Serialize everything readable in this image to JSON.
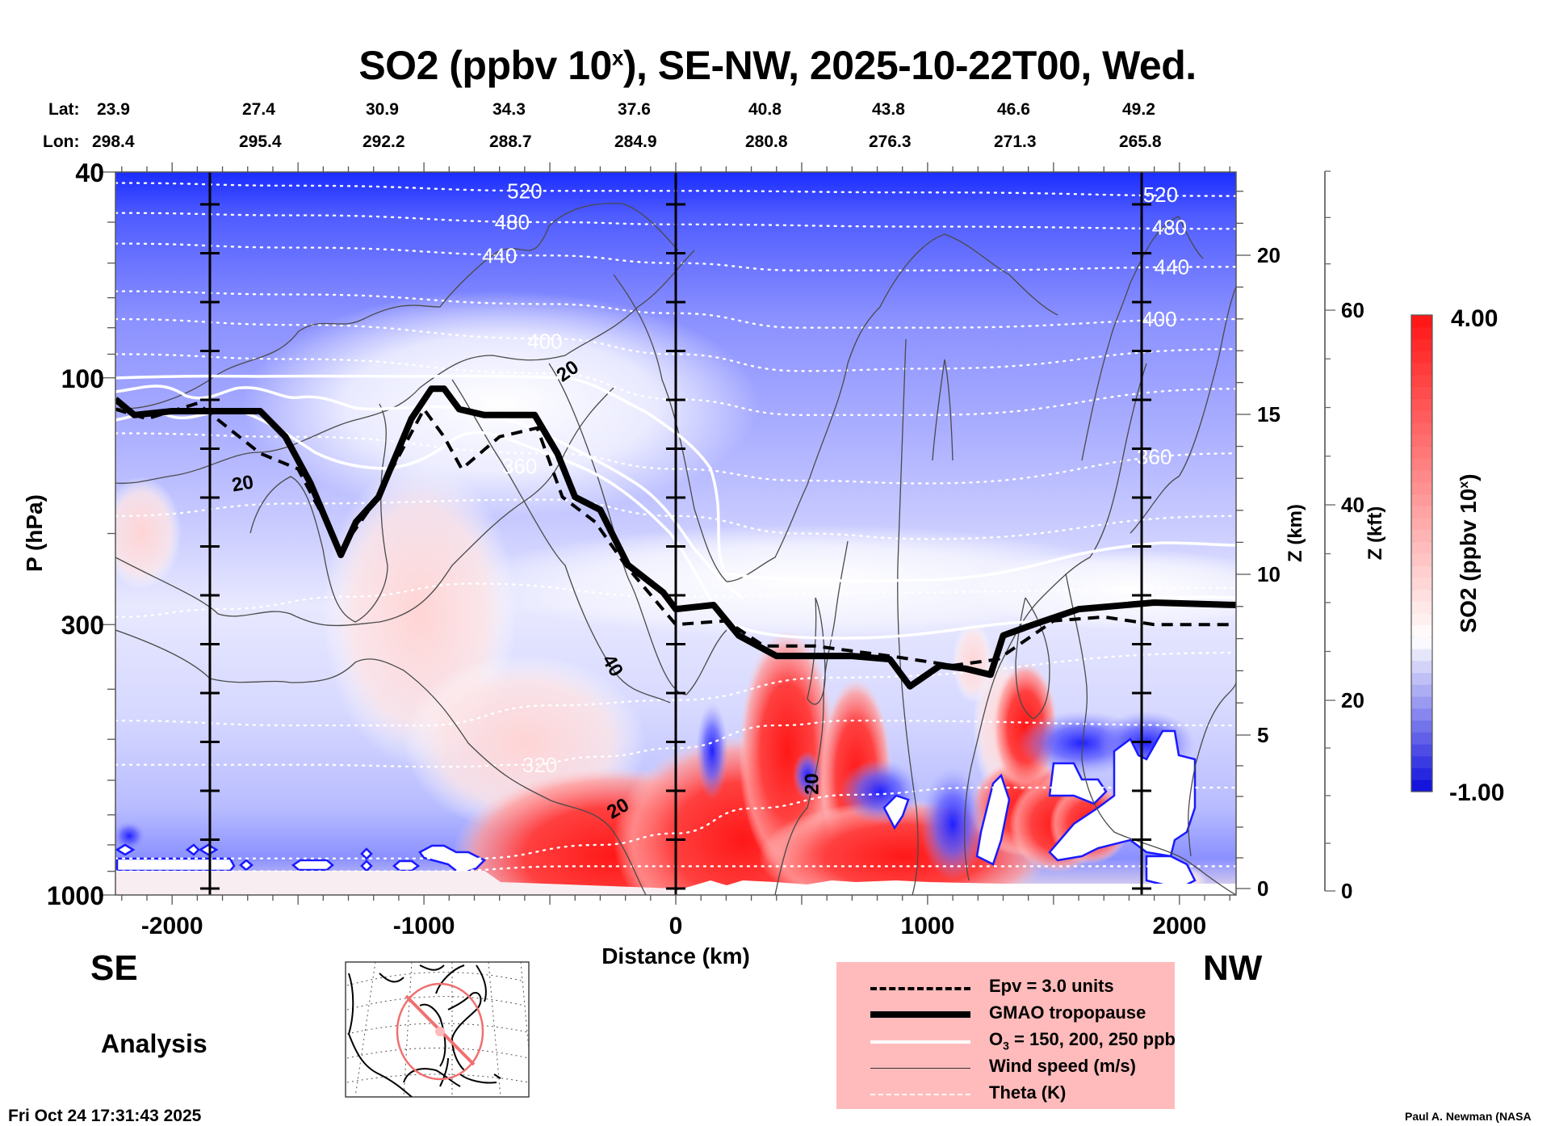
{
  "chart_data": {
    "type": "heatmap",
    "title": "SO2 (ppbv 10",
    "title_sup": "x",
    "title_suffix": "), SE-NW, 2025-10-22T00, Wed.",
    "variable": "SO2",
    "units": "ppbv 10^x",
    "orientation": "SE-NW",
    "valid_time": "2025-10-22T00",
    "weekday": "Wed.",
    "xlabel": "Distance (km)",
    "ylabel": "P (hPa)",
    "x_range": [
      -2225,
      2225
    ],
    "x_ticks": [
      -2000,
      -1000,
      0,
      1000,
      2000
    ],
    "x_tick_labels": [
      "-2000",
      "-1000",
      "0",
      "1000",
      "2000"
    ],
    "y_range_hpa": [
      1000,
      40
    ],
    "y_scale": "log",
    "y_ticks": [
      40,
      100,
      300,
      1000
    ],
    "y_tick_labels": [
      "40",
      "100",
      "300",
      "1000"
    ],
    "z_km_label": "Z (km)",
    "z_km_ticks": [
      0,
      5,
      10,
      15,
      20
    ],
    "z_kft_label": "Z (kft)",
    "z_kft_ticks": [
      0,
      20,
      40,
      60
    ],
    "lat_label": "Lat:",
    "lon_label": "Lon:",
    "lat_values": [
      "23.9",
      "27.4",
      "30.9",
      "34.3",
      "37.6",
      "40.8",
      "43.8",
      "46.6",
      "49.2"
    ],
    "lon_values": [
      "298.4",
      "295.4",
      "292.2",
      "288.7",
      "284.9",
      "280.8",
      "276.3",
      "271.3",
      "265.8"
    ],
    "vertical_markers_km": [
      -1850,
      0,
      1850
    ],
    "colorbar": {
      "label": "SO2 (ppbv 10",
      "label_sup": "x",
      "label_suffix": ")",
      "min": -1.0,
      "max": 4.0,
      "min_label": "-1.00",
      "max_label": "4.00",
      "levels": 40,
      "low_color": "#0000ff",
      "mid_color": "#ffffff",
      "high_color": "#ff0000"
    },
    "theta_contours_K": [
      {
        "value": 520,
        "label": "520",
        "p_hpa": 42
      },
      {
        "value": 480,
        "label": "480",
        "p_hpa": 52
      },
      {
        "value": 440,
        "label": "440",
        "p_hpa": 66
      },
      {
        "value": 400,
        "label": "400",
        "p_hpa": 88
      },
      {
        "value": 360,
        "label": "360",
        "p_hpa": 150
      },
      {
        "value": 320,
        "label": "320",
        "p_hpa": 560
      }
    ],
    "wind_speed_labels_ms": [
      {
        "x_km": -1720,
        "p_hpa": 160,
        "label": "20"
      },
      {
        "x_km": -430,
        "p_hpa": 97,
        "label": "20"
      },
      {
        "x_km": -250,
        "p_hpa": 360,
        "label": "40"
      },
      {
        "x_km": -230,
        "p_hpa": 680,
        "label": "20"
      },
      {
        "x_km": 540,
        "p_hpa": 610,
        "label": "20"
      }
    ],
    "tropopause_gmao_hpa": [
      {
        "x": -2225,
        "p": 110
      },
      {
        "x": -2150,
        "p": 118
      },
      {
        "x": -2000,
        "p": 116
      },
      {
        "x": -1750,
        "p": 116
      },
      {
        "x": -1650,
        "p": 116
      },
      {
        "x": -1550,
        "p": 130
      },
      {
        "x": -1450,
        "p": 160
      },
      {
        "x": -1330,
        "p": 220
      },
      {
        "x": -1270,
        "p": 190
      },
      {
        "x": -1180,
        "p": 170
      },
      {
        "x": -1050,
        "p": 120
      },
      {
        "x": -970,
        "p": 105
      },
      {
        "x": -920,
        "p": 105
      },
      {
        "x": -860,
        "p": 115
      },
      {
        "x": -760,
        "p": 118
      },
      {
        "x": -560,
        "p": 118
      },
      {
        "x": -470,
        "p": 140
      },
      {
        "x": -400,
        "p": 170
      },
      {
        "x": -300,
        "p": 180
      },
      {
        "x": -190,
        "p": 230
      },
      {
        "x": -50,
        "p": 260
      },
      {
        "x": 0,
        "p": 280
      },
      {
        "x": 150,
        "p": 275
      },
      {
        "x": 250,
        "p": 315
      },
      {
        "x": 400,
        "p": 345
      },
      {
        "x": 700,
        "p": 345
      },
      {
        "x": 850,
        "p": 350
      },
      {
        "x": 930,
        "p": 395
      },
      {
        "x": 1050,
        "p": 360
      },
      {
        "x": 1150,
        "p": 365
      },
      {
        "x": 1250,
        "p": 375
      },
      {
        "x": 1300,
        "p": 315
      },
      {
        "x": 1420,
        "p": 300
      },
      {
        "x": 1600,
        "p": 280
      },
      {
        "x": 1900,
        "p": 272
      },
      {
        "x": 2225,
        "p": 275
      }
    ],
    "epv_3pvu_hpa": [
      {
        "x": -2225,
        "p": 115
      },
      {
        "x": -2100,
        "p": 120
      },
      {
        "x": -1900,
        "p": 112
      },
      {
        "x": -1650,
        "p": 140
      },
      {
        "x": -1500,
        "p": 150
      },
      {
        "x": -1330,
        "p": 215
      },
      {
        "x": -1200,
        "p": 175
      },
      {
        "x": -1000,
        "p": 115
      },
      {
        "x": -920,
        "p": 130
      },
      {
        "x": -850,
        "p": 150
      },
      {
        "x": -700,
        "p": 130
      },
      {
        "x": -550,
        "p": 125
      },
      {
        "x": -450,
        "p": 170
      },
      {
        "x": -320,
        "p": 190
      },
      {
        "x": -200,
        "p": 230
      },
      {
        "x": 0,
        "p": 300
      },
      {
        "x": 200,
        "p": 295
      },
      {
        "x": 350,
        "p": 330
      },
      {
        "x": 550,
        "p": 330
      },
      {
        "x": 850,
        "p": 345
      },
      {
        "x": 1100,
        "p": 360
      },
      {
        "x": 1280,
        "p": 350
      },
      {
        "x": 1500,
        "p": 295
      },
      {
        "x": 1700,
        "p": 290
      },
      {
        "x": 1900,
        "p": 300
      },
      {
        "x": 2225,
        "p": 300
      }
    ],
    "ozone_contours_ppb": [
      150,
      200,
      250
    ]
  },
  "header": {
    "lat_label": "Lat:",
    "lon_label": "Lon:"
  },
  "annotations": {
    "left_direction": "SE",
    "right_direction": "NW",
    "analysis": "Analysis",
    "timestamp": "Fri Oct 24 17:31:43 2025",
    "credit": "Paul A. Newman (NASA"
  },
  "legend": {
    "items": [
      {
        "label": "Epv = 3.0 units",
        "style": "dashed-black"
      },
      {
        "label": "GMAO tropopause",
        "style": "thick-black"
      },
      {
        "label_pre": "O",
        "label_sub": "3",
        "label_post": " = 150, 200, 250 ppb",
        "style": "white"
      },
      {
        "label": "Wind speed (m/s)",
        "style": "thin-black"
      },
      {
        "label": "Theta (K)",
        "style": "dotted-white"
      }
    ],
    "background": "#ffbbbb"
  },
  "inset_map": {
    "region": "North America",
    "circle_color": "#f07070",
    "section_line": "SE-NW"
  }
}
